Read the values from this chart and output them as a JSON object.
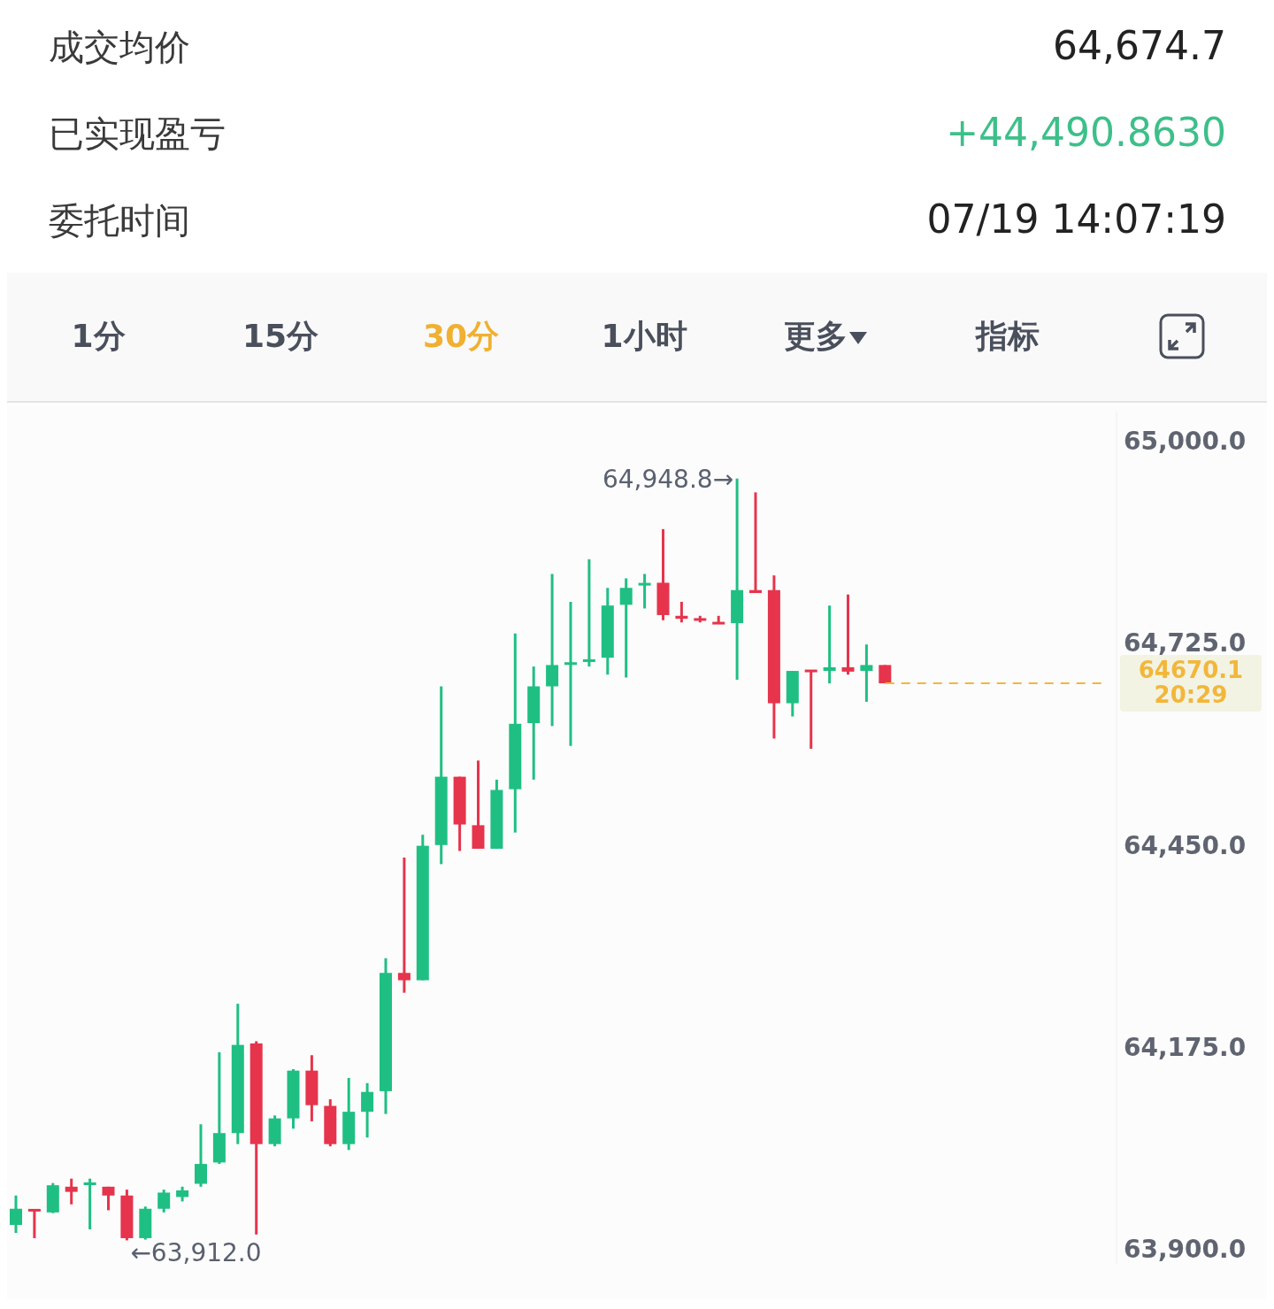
{
  "chart_data": {
    "type": "candlestick",
    "categories": [
      null,
      null,
      null,
      null,
      null,
      null,
      null,
      null,
      null,
      null,
      null,
      null,
      null,
      null,
      null,
      null,
      null,
      null,
      null,
      null,
      null,
      null,
      null,
      null,
      null,
      null,
      null,
      null,
      null,
      null,
      null,
      null,
      null,
      null,
      null,
      null,
      null,
      null,
      null,
      null,
      null,
      null,
      null,
      null,
      null,
      null,
      null,
      null,
      null,
      null,
      null,
      null,
      null,
      null,
      null,
      null,
      null,
      null,
      null,
      null
    ],
    "ohlc": [
      [
        63933,
        63973,
        63922,
        63955
      ],
      [
        63953,
        63953,
        63915,
        63950
      ],
      [
        63950,
        63990,
        63949,
        63987
      ],
      [
        63985,
        63996,
        63961,
        63978
      ],
      [
        63986,
        63996,
        63927,
        63989
      ],
      [
        63985,
        63985,
        63953,
        63973
      ],
      [
        63973,
        63981,
        63912,
        63915
      ],
      [
        63915,
        63958,
        63913,
        63955
      ],
      [
        63955,
        63981,
        63950,
        63977
      ],
      [
        63971,
        63985,
        63965,
        63980
      ],
      [
        63989,
        64070,
        63985,
        64016
      ],
      [
        64018,
        64168,
        64016,
        64058
      ],
      [
        64058,
        64234,
        64043,
        64178
      ],
      [
        64180,
        64183,
        63920,
        64043
      ],
      [
        64043,
        64082,
        64040,
        64078
      ],
      [
        64078,
        64145,
        64064,
        64143
      ],
      [
        64143,
        64164,
        64074,
        64096
      ],
      [
        64095,
        64104,
        64040,
        64043
      ],
      [
        64043,
        64133,
        64035,
        64087
      ],
      [
        64087,
        64126,
        64052,
        64114
      ],
      [
        64115,
        64296,
        64084,
        64276
      ],
      [
        64276,
        64433,
        64249,
        64266
      ],
      [
        64266,
        64464,
        64266,
        64449
      ],
      [
        64450,
        64666,
        64424,
        64543
      ],
      [
        64543,
        64543,
        64442,
        64478
      ],
      [
        64477,
        64565,
        64445,
        64445
      ],
      [
        64445,
        64539,
        64445,
        64525
      ],
      [
        64526,
        64738,
        64467,
        64615
      ],
      [
        64616,
        64693,
        64539,
        64666
      ],
      [
        64666,
        64819,
        64612,
        64695
      ],
      [
        64695,
        64781,
        64585,
        64697
      ],
      [
        64699,
        64839,
        64693,
        64701
      ],
      [
        64705,
        64800,
        64682,
        64776
      ],
      [
        64777,
        64813,
        64678,
        64800
      ],
      [
        64803,
        64819,
        64772,
        64805
      ],
      [
        64807,
        64880,
        64756,
        64763
      ],
      [
        64762,
        64781,
        64753,
        64758
      ],
      [
        64757,
        64762,
        64753,
        64756
      ],
      [
        64752,
        64762,
        64751,
        64751
      ],
      [
        64752,
        64948.8,
        64675,
        64797
      ],
      [
        64797,
        64930,
        64793,
        64793
      ],
      [
        64797,
        64817,
        64595,
        64643
      ],
      [
        64643,
        64687,
        64625,
        64687
      ],
      [
        64687,
        64687,
        64581,
        64685
      ],
      [
        64687,
        64776,
        64670,
        64692
      ],
      [
        64692,
        64791,
        64682,
        64686
      ],
      [
        64687,
        64723,
        64645,
        64695
      ],
      [
        64695,
        64695,
        64670.1,
        64670.1
      ],
      null,
      null,
      null,
      null,
      null,
      null,
      null,
      null,
      null,
      null,
      null,
      null
    ],
    "colors": [
      "#1fbf83",
      "#e6344c",
      "#1fbf83",
      "#e6344c",
      "#1fbf83",
      "#e6344c",
      "#e6344c",
      "#1fbf83",
      "#1fbf83",
      "#1fbf83",
      "#1fbf83",
      "#1fbf83",
      "#1fbf83",
      "#e6344c",
      "#1fbf83",
      "#1fbf83",
      "#e6344c",
      "#e6344c",
      "#1fbf83",
      "#1fbf83",
      "#1fbf83",
      "#e6344c",
      "#1fbf83",
      "#1fbf83",
      "#e6344c",
      "#e6344c",
      "#1fbf83",
      "#1fbf83",
      "#1fbf83",
      "#1fbf83",
      "#1fbf83",
      "#1fbf83",
      "#1fbf83",
      "#1fbf83",
      "#1fbf83",
      "#e6344c",
      "#e6344c",
      "#e6344c",
      "#e6344c",
      "#1fbf83",
      "#e6344c",
      "#e6344c",
      "#1fbf83",
      "#e6344c",
      "#1fbf83",
      "#e6344c",
      "#1fbf83",
      "#e6344c",
      null,
      null,
      null,
      null,
      null,
      null,
      null,
      null,
      null,
      null,
      null,
      null
    ],
    "ylim": [
      63880,
      65040
    ],
    "yticks": [
      {
        "value": 63900,
        "label": "63,900.0"
      },
      {
        "value": 64175,
        "label": "64,175.0"
      },
      {
        "value": 64450,
        "label": "64,450.0"
      },
      {
        "value": 64725,
        "label": "64,725.0"
      },
      {
        "value": 65000,
        "label": "65,000.0"
      }
    ],
    "tick_labels": "y",
    "grid": false,
    "legend": false,
    "ref_lines": [
      {
        "axis": "y",
        "value": 64670.1,
        "label": "64670.1\n20:29",
        "color": "#f2b73a",
        "line_style": "dashed"
      }
    ],
    "annotations": [
      "成交均价",
      "64,674.7",
      "已实现盈亏",
      "+44,490.8630",
      "委托时间",
      "07/19 14:07:19",
      "1分",
      "15分",
      "30分",
      "1小时",
      "更多",
      "指标",
      "64,948.8→",
      "←63,912.0"
    ]
  }
}
